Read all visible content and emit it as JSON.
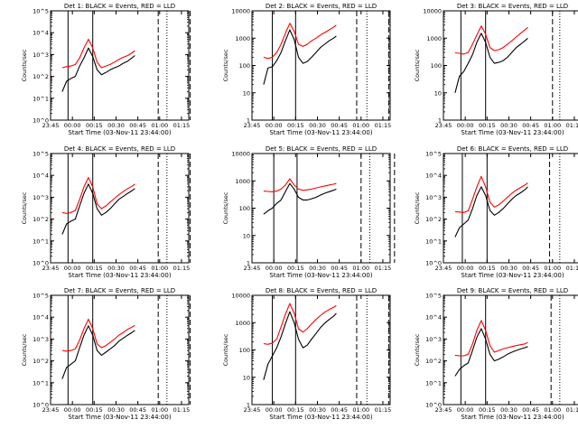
{
  "figure": {
    "xlabel": "Start Time (03-Nov-11 23:44:00)",
    "ylabel": "Counts/sec",
    "x_ticks": [
      "23:45",
      "00:00",
      "00:15",
      "00:30",
      "00:45",
      "01:00",
      "01:15"
    ],
    "colors": {
      "events": "#000000",
      "lld": "#ff0000"
    }
  },
  "chart_data": [
    {
      "type": "line",
      "title": "Det 1: BLACK = Events, RED = LLD",
      "xlabel": "Start Time (03-Nov-11 23:44:00)",
      "ylabel": "Counts/sec",
      "log_y": true,
      "ylim": [
        1,
        100000
      ],
      "y_ticks": [
        1,
        10,
        100,
        1000,
        10000,
        100000
      ],
      "y_tick_labels": [
        "10^0",
        "10^1",
        "10^2",
        "10^3",
        "10^4",
        "10^5"
      ],
      "x": [
        "23:53",
        "23:56",
        "23:59",
        "00:02",
        "00:05",
        "00:08",
        "00:11",
        "00:14",
        "00:17",
        "00:20",
        "00:23",
        "00:26",
        "00:29",
        "00:32",
        "00:35",
        "00:38",
        "00:41",
        "00:43"
      ],
      "series": [
        {
          "name": "Events",
          "color": "#000000",
          "values": [
            20,
            60,
            80,
            100,
            300,
            700,
            2000,
            800,
            200,
            120,
            150,
            200,
            250,
            300,
            400,
            500,
            700,
            900
          ]
        },
        {
          "name": "LLD",
          "color": "#ff0000",
          "values": [
            250,
            280,
            300,
            350,
            700,
            2000,
            5000,
            2000,
            450,
            250,
            300,
            350,
            450,
            600,
            750,
            900,
            1200,
            1500
          ]
        }
      ],
      "vertical_lines": {
        "solid": [
          "23:57",
          "00:14"
        ],
        "dashed": [
          "00:59",
          "01:21"
        ],
        "dotted": [
          "01:05"
        ]
      }
    },
    {
      "type": "line",
      "title": "Det 2: BLACK = Events, RED = LLD",
      "xlabel": "Start Time (03-Nov-11 23:44:00)",
      "ylabel": "Counts/sec",
      "log_y": true,
      "ylim": [
        1,
        10000
      ],
      "y_ticks": [
        1,
        10,
        100,
        1000,
        10000
      ],
      "y_tick_labels": [
        "1",
        "10",
        "100",
        "1000",
        "10000"
      ],
      "x": [
        "23:53",
        "23:56",
        "23:59",
        "00:02",
        "00:05",
        "00:08",
        "00:11",
        "00:14",
        "00:17",
        "00:20",
        "00:23",
        "00:26",
        "00:29",
        "00:32",
        "00:35",
        "00:38",
        "00:41",
        "00:43"
      ],
      "series": [
        {
          "name": "Events",
          "color": "#000000",
          "values": [
            20,
            80,
            90,
            150,
            300,
            800,
            2000,
            900,
            200,
            120,
            140,
            200,
            300,
            450,
            600,
            800,
            1000,
            1200
          ]
        },
        {
          "name": "LLD",
          "color": "#ff0000",
          "values": [
            200,
            180,
            200,
            300,
            600,
            1500,
            3500,
            1800,
            600,
            500,
            600,
            800,
            1000,
            1300,
            1600,
            2000,
            2500,
            3000
          ]
        }
      ],
      "vertical_lines": {
        "solid": [
          "23:59",
          "00:15"
        ],
        "dashed": [
          "00:57",
          "01:19"
        ],
        "dotted": [
          "01:04"
        ]
      }
    },
    {
      "type": "line",
      "title": "Det 3: BLACK = Events, RED = LLD",
      "xlabel": "Start Time (03-Nov-11 23:44:00)",
      "ylabel": "Counts/sec",
      "log_y": true,
      "ylim": [
        1,
        10000
      ],
      "y_ticks": [
        1,
        10,
        100,
        1000,
        10000
      ],
      "y_tick_labels": [
        "1",
        "10",
        "100",
        "1000",
        "10000"
      ],
      "x": [
        "23:53",
        "23:56",
        "23:59",
        "00:02",
        "00:05",
        "00:08",
        "00:11",
        "00:14",
        "00:17",
        "00:20",
        "00:23",
        "00:26",
        "00:29",
        "00:32",
        "00:35",
        "00:38",
        "00:41",
        "00:43"
      ],
      "series": [
        {
          "name": "Events",
          "color": "#000000",
          "values": [
            10,
            40,
            60,
            120,
            250,
            700,
            1500,
            700,
            200,
            120,
            130,
            150,
            200,
            300,
            450,
            600,
            800,
            1000
          ]
        },
        {
          "name": "LLD",
          "color": "#ff0000",
          "values": [
            290,
            280,
            260,
            300,
            600,
            1300,
            2800,
            1400,
            450,
            350,
            380,
            450,
            600,
            800,
            1100,
            1500,
            2000,
            2500
          ]
        }
      ],
      "vertical_lines": {
        "solid": [
          "23:57",
          "00:14"
        ],
        "dashed": [
          "01:00",
          "01:22"
        ],
        "dotted": [
          "01:05"
        ]
      }
    },
    {
      "type": "line",
      "title": "Det 4: BLACK = Events, RED = LLD",
      "xlabel": "Start Time (03-Nov-11 23:44:00)",
      "ylabel": "Counts/sec",
      "log_y": true,
      "ylim": [
        1,
        100000
      ],
      "y_ticks": [
        1,
        10,
        100,
        1000,
        10000,
        100000
      ],
      "y_tick_labels": [
        "10^0",
        "10^1",
        "10^2",
        "10^3",
        "10^4",
        "10^5"
      ],
      "x": [
        "23:53",
        "23:56",
        "23:59",
        "00:02",
        "00:05",
        "00:08",
        "00:11",
        "00:14",
        "00:17",
        "00:20",
        "00:23",
        "00:26",
        "00:29",
        "00:32",
        "00:35",
        "00:38",
        "00:41",
        "00:43"
      ],
      "series": [
        {
          "name": "Events",
          "color": "#000000",
          "values": [
            20,
            60,
            80,
            100,
            400,
            1500,
            4000,
            1500,
            300,
            150,
            200,
            300,
            500,
            800,
            1100,
            1500,
            2000,
            2500
          ]
        },
        {
          "name": "LLD",
          "color": "#ff0000",
          "values": [
            200,
            180,
            200,
            250,
            800,
            3000,
            8000,
            3000,
            500,
            300,
            400,
            600,
            900,
            1300,
            1800,
            2500,
            3200,
            4000
          ]
        }
      ],
      "vertical_lines": {
        "solid": [
          "23:57",
          "00:14"
        ],
        "dashed": [
          "00:59",
          "01:21"
        ],
        "dotted": [
          "01:05"
        ]
      }
    },
    {
      "type": "line",
      "title": "Det 5: BLACK = Events, RED = LLD",
      "xlabel": "Start Time (03-Nov-11 23:44:00)",
      "ylabel": "Counts/sec",
      "log_y": true,
      "ylim": [
        1,
        10000
      ],
      "y_ticks": [
        1,
        10,
        100,
        1000,
        10000
      ],
      "y_tick_labels": [
        "1",
        "10",
        "100",
        "1000",
        "10000"
      ],
      "x": [
        "23:53",
        "23:56",
        "23:59",
        "00:02",
        "00:05",
        "00:08",
        "00:11",
        "00:14",
        "00:17",
        "00:20",
        "00:23",
        "00:26",
        "00:29",
        "00:32",
        "00:35",
        "00:38",
        "00:41",
        "00:43"
      ],
      "series": [
        {
          "name": "Events",
          "color": "#000000",
          "values": [
            60,
            80,
            100,
            150,
            200,
            400,
            800,
            500,
            250,
            200,
            200,
            220,
            250,
            300,
            350,
            400,
            450,
            500
          ]
        },
        {
          "name": "LLD",
          "color": "#ff0000",
          "values": [
            420,
            410,
            400,
            420,
            500,
            700,
            1200,
            700,
            500,
            450,
            470,
            500,
            550,
            600,
            650,
            700,
            750,
            800
          ]
        }
      ],
      "vertical_lines": {
        "solid": [
          "00:00",
          "00:16"
        ],
        "dashed": [
          "01:00",
          "01:23"
        ],
        "dotted": [
          "01:06"
        ]
      }
    },
    {
      "type": "line",
      "title": "Det 6: BLACK = Events, RED = LLD",
      "xlabel": "Start Time (03-Nov-11 23:44:00)",
      "ylabel": "Counts/sec",
      "log_y": true,
      "ylim": [
        1,
        100000
      ],
      "y_ticks": [
        1,
        10,
        100,
        1000,
        10000,
        100000
      ],
      "y_tick_labels": [
        "10^0",
        "10^1",
        "10^2",
        "10^3",
        "10^4",
        "10^5"
      ],
      "x": [
        "23:53",
        "23:56",
        "23:59",
        "00:02",
        "00:05",
        "00:08",
        "00:11",
        "00:14",
        "00:17",
        "00:20",
        "00:23",
        "00:26",
        "00:29",
        "00:32",
        "00:35",
        "00:38",
        "00:41",
        "00:43"
      ],
      "series": [
        {
          "name": "Events",
          "color": "#000000",
          "values": [
            15,
            40,
            60,
            90,
            300,
            1200,
            3000,
            1200,
            250,
            150,
            200,
            300,
            500,
            800,
            1200,
            1600,
            2200,
            3000
          ]
        },
        {
          "name": "LLD",
          "color": "#ff0000",
          "values": [
            220,
            210,
            200,
            240,
            800,
            3000,
            9000,
            3000,
            600,
            350,
            450,
            650,
            1000,
            1500,
            2100,
            2800,
            3600,
            4500
          ]
        }
      ],
      "vertical_lines": {
        "solid": [
          "23:58",
          "00:15"
        ],
        "dashed": [
          "00:58",
          "01:20"
        ],
        "dotted": [
          "01:05"
        ]
      }
    },
    {
      "type": "line",
      "title": "Det 7: BLACK = Events, RED = LLD",
      "xlabel": "Start Time (03-Nov-11 23:44:00)",
      "ylabel": "Counts/sec",
      "log_y": true,
      "ylim": [
        1,
        100000
      ],
      "y_ticks": [
        1,
        10,
        100,
        1000,
        10000,
        100000
      ],
      "y_tick_labels": [
        "10^0",
        "10^1",
        "10^2",
        "10^3",
        "10^4",
        "10^5"
      ],
      "x": [
        "23:53",
        "23:56",
        "23:59",
        "00:02",
        "00:05",
        "00:08",
        "00:11",
        "00:14",
        "00:17",
        "00:20",
        "00:23",
        "00:26",
        "00:29",
        "00:32",
        "00:35",
        "00:38",
        "00:41",
        "00:43"
      ],
      "series": [
        {
          "name": "Events",
          "color": "#000000",
          "values": [
            15,
            50,
            70,
            100,
            400,
            1500,
            4000,
            1500,
            300,
            180,
            250,
            350,
            500,
            800,
            1100,
            1500,
            2000,
            2500
          ]
        },
        {
          "name": "LLD",
          "color": "#ff0000",
          "values": [
            300,
            280,
            300,
            350,
            900,
            3000,
            8000,
            3000,
            600,
            400,
            500,
            700,
            1000,
            1500,
            2000,
            2800,
            3500,
            4200
          ]
        }
      ],
      "vertical_lines": {
        "solid": [
          "23:57",
          "00:14"
        ],
        "dashed": [
          "00:59",
          "01:21"
        ],
        "dotted": [
          "01:05"
        ]
      }
    },
    {
      "type": "line",
      "title": "Det 8: BLACK = Events, RED = LLD",
      "xlabel": "Start Time (03-Nov-11 23:44:00)",
      "ylabel": "Counts/sec",
      "log_y": true,
      "ylim": [
        1,
        10000
      ],
      "y_ticks": [
        1,
        10,
        100,
        1000,
        10000
      ],
      "y_tick_labels": [
        "1",
        "10",
        "100",
        "1000",
        "10000"
      ],
      "x": [
        "23:53",
        "23:56",
        "23:59",
        "00:02",
        "00:05",
        "00:08",
        "00:11",
        "00:14",
        "00:17",
        "00:20",
        "00:23",
        "00:26",
        "00:29",
        "00:32",
        "00:35",
        "00:38",
        "00:41",
        "00:43"
      ],
      "series": [
        {
          "name": "Events",
          "color": "#000000",
          "values": [
            8,
            30,
            60,
            120,
            300,
            900,
            2500,
            1000,
            250,
            120,
            150,
            250,
            400,
            650,
            950,
            1300,
            1700,
            2200
          ]
        },
        {
          "name": "LLD",
          "color": "#ff0000",
          "values": [
            170,
            160,
            180,
            250,
            700,
            2000,
            5000,
            2200,
            600,
            450,
            600,
            900,
            1300,
            1800,
            2400,
            3000,
            3600,
            4200
          ]
        }
      ],
      "vertical_lines": {
        "solid": [
          "23:59",
          "00:15"
        ],
        "dashed": [
          "00:57",
          "01:19"
        ],
        "dotted": [
          "01:04"
        ]
      }
    },
    {
      "type": "line",
      "title": "Det 9: BLACK = Events, RED = LLD",
      "xlabel": "Start Time (03-Nov-11 23:44:00)",
      "ylabel": "Counts/sec",
      "log_y": true,
      "ylim": [
        1,
        100000
      ],
      "y_ticks": [
        1,
        10,
        100,
        1000,
        10000,
        100000
      ],
      "y_tick_labels": [
        "10^0",
        "10^1",
        "10^2",
        "10^3",
        "10^4",
        "10^5"
      ],
      "x": [
        "23:53",
        "23:56",
        "23:59",
        "00:02",
        "00:05",
        "00:08",
        "00:11",
        "00:14",
        "00:17",
        "00:20",
        "00:23",
        "00:26",
        "00:29",
        "00:32",
        "00:35",
        "00:38",
        "00:41",
        "00:43"
      ],
      "series": [
        {
          "name": "Events",
          "color": "#000000",
          "values": [
            20,
            40,
            60,
            80,
            300,
            1200,
            3000,
            1000,
            200,
            100,
            120,
            150,
            200,
            250,
            300,
            350,
            400,
            450
          ]
        },
        {
          "name": "LLD",
          "color": "#ff0000",
          "values": [
            180,
            170,
            170,
            200,
            600,
            2500,
            7000,
            2500,
            500,
            250,
            300,
            350,
            400,
            450,
            500,
            550,
            600,
            700
          ]
        }
      ],
      "vertical_lines": {
        "solid": [
          "23:57",
          "00:14"
        ],
        "dashed": [
          "00:59",
          "01:21"
        ],
        "dotted": [
          "01:05"
        ]
      }
    }
  ]
}
